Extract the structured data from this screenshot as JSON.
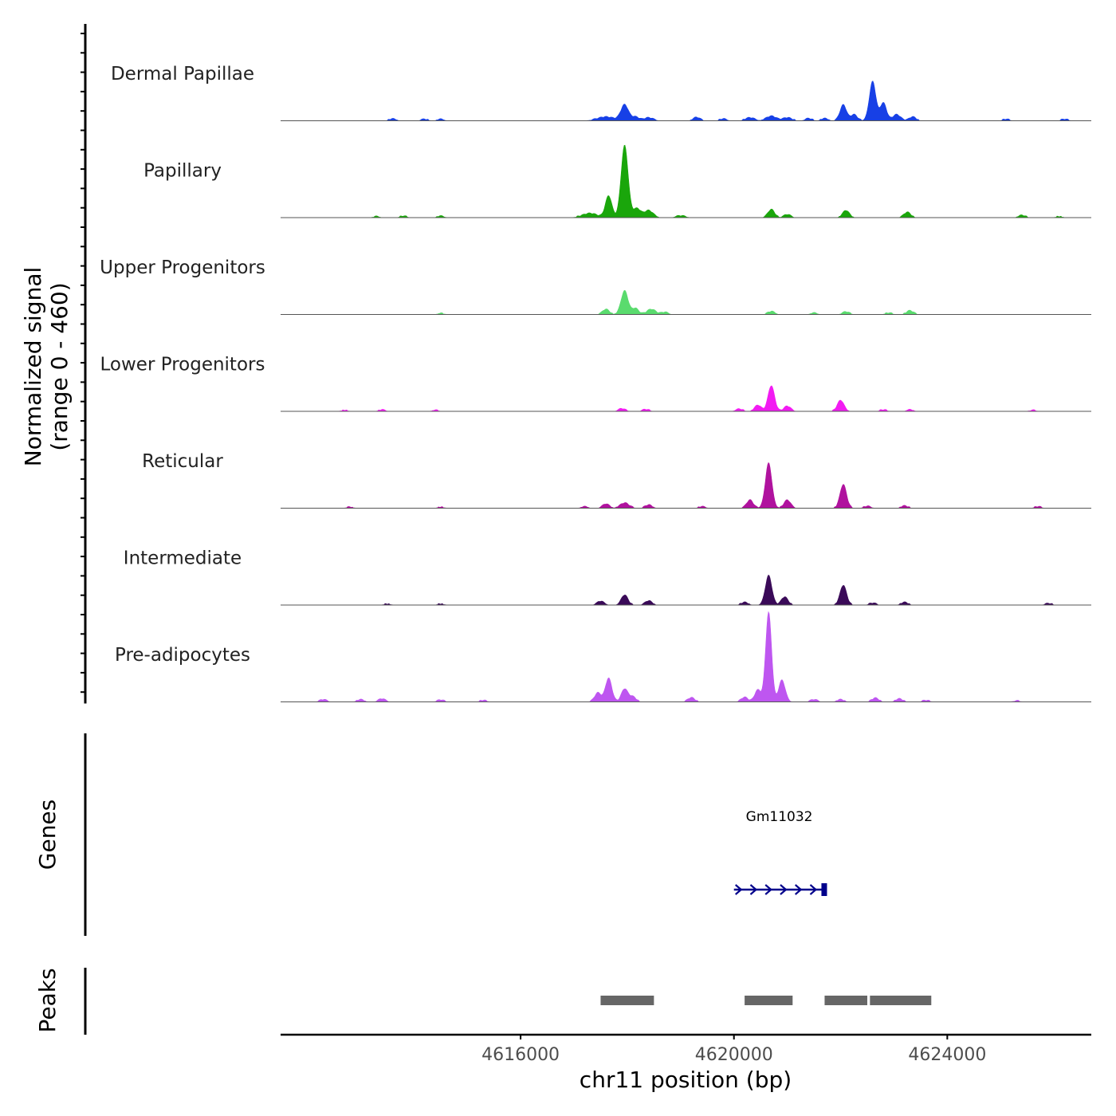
{
  "chart_data": {
    "type": "area",
    "title": "",
    "chromosome": "chr11",
    "xlabel": "chr11 position (bp)",
    "xlim": [
      4611500,
      4626700
    ],
    "xticks": [
      4616000,
      4620000,
      4624000
    ],
    "xtick_labels": [
      "4616000",
      "4620000",
      "4624000"
    ],
    "ylabel_line1": "Normalized signal",
    "ylabel_line2": "(range 0 - 460)",
    "ylim": [
      0,
      460
    ],
    "series": [
      {
        "name": "Dermal Papillae",
        "color": "#1740E6",
        "peaks": [
          {
            "center": 4613600,
            "width": 60,
            "height": 8
          },
          {
            "center": 4614200,
            "width": 60,
            "height": 6
          },
          {
            "center": 4614500,
            "width": 60,
            "height": 6
          },
          {
            "center": 4617600,
            "width": 150,
            "height": 18
          },
          {
            "center": 4617950,
            "width": 70,
            "height": 80
          },
          {
            "center": 4618150,
            "width": 70,
            "height": 18
          },
          {
            "center": 4618400,
            "width": 80,
            "height": 14
          },
          {
            "center": 4619300,
            "width": 60,
            "height": 16
          },
          {
            "center": 4619800,
            "width": 60,
            "height": 8
          },
          {
            "center": 4620300,
            "width": 80,
            "height": 14
          },
          {
            "center": 4620700,
            "width": 90,
            "height": 22
          },
          {
            "center": 4621000,
            "width": 80,
            "height": 14
          },
          {
            "center": 4621400,
            "width": 60,
            "height": 10
          },
          {
            "center": 4621700,
            "width": 60,
            "height": 10
          },
          {
            "center": 4622050,
            "width": 60,
            "height": 80
          },
          {
            "center": 4622250,
            "width": 60,
            "height": 30
          },
          {
            "center": 4622600,
            "width": 60,
            "height": 200
          },
          {
            "center": 4622800,
            "width": 60,
            "height": 90
          },
          {
            "center": 4623050,
            "width": 70,
            "height": 30
          },
          {
            "center": 4623350,
            "width": 60,
            "height": 18
          },
          {
            "center": 4625100,
            "width": 60,
            "height": 6
          },
          {
            "center": 4626200,
            "width": 60,
            "height": 6
          }
        ]
      },
      {
        "name": "Papillary",
        "color": "#1AA60B",
        "peaks": [
          {
            "center": 4613300,
            "width": 60,
            "height": 4
          },
          {
            "center": 4613800,
            "width": 60,
            "height": 6
          },
          {
            "center": 4614500,
            "width": 60,
            "height": 6
          },
          {
            "center": 4617300,
            "width": 130,
            "height": 20
          },
          {
            "center": 4617650,
            "width": 60,
            "height": 110
          },
          {
            "center": 4617950,
            "width": 65,
            "height": 370
          },
          {
            "center": 4618180,
            "width": 70,
            "height": 45
          },
          {
            "center": 4618400,
            "width": 80,
            "height": 35
          },
          {
            "center": 4619000,
            "width": 80,
            "height": 8
          },
          {
            "center": 4620700,
            "width": 60,
            "height": 40
          },
          {
            "center": 4621000,
            "width": 60,
            "height": 14
          },
          {
            "center": 4622100,
            "width": 60,
            "height": 35
          },
          {
            "center": 4623250,
            "width": 60,
            "height": 26
          },
          {
            "center": 4625400,
            "width": 60,
            "height": 10
          },
          {
            "center": 4626100,
            "width": 60,
            "height": 4
          }
        ]
      },
      {
        "name": "Upper Progenitors",
        "color": "#5ADB6E",
        "peaks": [
          {
            "center": 4614500,
            "width": 60,
            "height": 4
          },
          {
            "center": 4617600,
            "width": 60,
            "height": 25
          },
          {
            "center": 4617950,
            "width": 65,
            "height": 120
          },
          {
            "center": 4618150,
            "width": 60,
            "height": 30
          },
          {
            "center": 4618450,
            "width": 80,
            "height": 25
          },
          {
            "center": 4618700,
            "width": 60,
            "height": 10
          },
          {
            "center": 4620700,
            "width": 60,
            "height": 14
          },
          {
            "center": 4621500,
            "width": 60,
            "height": 6
          },
          {
            "center": 4622100,
            "width": 60,
            "height": 12
          },
          {
            "center": 4622900,
            "width": 60,
            "height": 6
          },
          {
            "center": 4623300,
            "width": 60,
            "height": 18
          }
        ]
      },
      {
        "name": "Lower Progenitors",
        "color": "#F21BF2",
        "peaks": [
          {
            "center": 4612700,
            "width": 60,
            "height": 4
          },
          {
            "center": 4613400,
            "width": 60,
            "height": 6
          },
          {
            "center": 4614400,
            "width": 60,
            "height": 4
          },
          {
            "center": 4617900,
            "width": 60,
            "height": 12
          },
          {
            "center": 4618350,
            "width": 60,
            "height": 8
          },
          {
            "center": 4620100,
            "width": 60,
            "height": 10
          },
          {
            "center": 4620450,
            "width": 60,
            "height": 30
          },
          {
            "center": 4620700,
            "width": 60,
            "height": 130
          },
          {
            "center": 4621000,
            "width": 60,
            "height": 25
          },
          {
            "center": 4622000,
            "width": 60,
            "height": 55
          },
          {
            "center": 4622800,
            "width": 60,
            "height": 6
          },
          {
            "center": 4623300,
            "width": 60,
            "height": 6
          },
          {
            "center": 4625600,
            "width": 60,
            "height": 4
          }
        ]
      },
      {
        "name": "Reticular",
        "color": "#B0129E",
        "peaks": [
          {
            "center": 4612800,
            "width": 60,
            "height": 4
          },
          {
            "center": 4614500,
            "width": 60,
            "height": 4
          },
          {
            "center": 4617200,
            "width": 60,
            "height": 6
          },
          {
            "center": 4617600,
            "width": 60,
            "height": 20
          },
          {
            "center": 4617950,
            "width": 80,
            "height": 25
          },
          {
            "center": 4618400,
            "width": 60,
            "height": 15
          },
          {
            "center": 4619400,
            "width": 60,
            "height": 6
          },
          {
            "center": 4620300,
            "width": 60,
            "height": 40
          },
          {
            "center": 4620650,
            "width": 60,
            "height": 230
          },
          {
            "center": 4621000,
            "width": 60,
            "height": 40
          },
          {
            "center": 4622050,
            "width": 60,
            "height": 120
          },
          {
            "center": 4622500,
            "width": 60,
            "height": 8
          },
          {
            "center": 4623200,
            "width": 60,
            "height": 10
          },
          {
            "center": 4625700,
            "width": 60,
            "height": 6
          }
        ]
      },
      {
        "name": "Intermediate",
        "color": "#3A0A58",
        "peaks": [
          {
            "center": 4613500,
            "width": 60,
            "height": 4
          },
          {
            "center": 4614500,
            "width": 60,
            "height": 4
          },
          {
            "center": 4617500,
            "width": 60,
            "height": 18
          },
          {
            "center": 4617950,
            "width": 60,
            "height": 50
          },
          {
            "center": 4618400,
            "width": 60,
            "height": 20
          },
          {
            "center": 4620200,
            "width": 60,
            "height": 12
          },
          {
            "center": 4620650,
            "width": 60,
            "height": 150
          },
          {
            "center": 4620950,
            "width": 60,
            "height": 40
          },
          {
            "center": 4622050,
            "width": 60,
            "height": 100
          },
          {
            "center": 4622600,
            "width": 60,
            "height": 8
          },
          {
            "center": 4623200,
            "width": 60,
            "height": 12
          },
          {
            "center": 4625900,
            "width": 60,
            "height": 6
          }
        ]
      },
      {
        "name": "Pre-adipocytes",
        "color": "#BE56F0",
        "peaks": [
          {
            "center": 4612300,
            "width": 60,
            "height": 10
          },
          {
            "center": 4613000,
            "width": 60,
            "height": 10
          },
          {
            "center": 4613400,
            "width": 60,
            "height": 14
          },
          {
            "center": 4614500,
            "width": 60,
            "height": 8
          },
          {
            "center": 4615300,
            "width": 60,
            "height": 6
          },
          {
            "center": 4617450,
            "width": 60,
            "height": 45
          },
          {
            "center": 4617650,
            "width": 60,
            "height": 120
          },
          {
            "center": 4617950,
            "width": 60,
            "height": 65
          },
          {
            "center": 4618100,
            "width": 60,
            "height": 25
          },
          {
            "center": 4619200,
            "width": 60,
            "height": 20
          },
          {
            "center": 4620200,
            "width": 60,
            "height": 22
          },
          {
            "center": 4620450,
            "width": 60,
            "height": 60
          },
          {
            "center": 4620650,
            "width": 55,
            "height": 460
          },
          {
            "center": 4620900,
            "width": 60,
            "height": 110
          },
          {
            "center": 4621500,
            "width": 60,
            "height": 10
          },
          {
            "center": 4622000,
            "width": 60,
            "height": 10
          },
          {
            "center": 4622650,
            "width": 60,
            "height": 18
          },
          {
            "center": 4623100,
            "width": 60,
            "height": 14
          },
          {
            "center": 4623600,
            "width": 60,
            "height": 6
          },
          {
            "center": 4625300,
            "width": 60,
            "height": 4
          }
        ]
      }
    ],
    "genes": {
      "label": "Genes",
      "items": [
        {
          "name": "Gm11032",
          "start": 4620000,
          "end": 4621700,
          "strand": "+",
          "color": "#00008B"
        }
      ]
    },
    "peaks_track": {
      "label": "Peaks",
      "color": "#666666",
      "regions": [
        {
          "start": 4617500,
          "end": 4618500
        },
        {
          "start": 4620200,
          "end": 4621100
        },
        {
          "start": 4621700,
          "end": 4622500
        },
        {
          "start": 4622550,
          "end": 4623700
        }
      ]
    }
  }
}
